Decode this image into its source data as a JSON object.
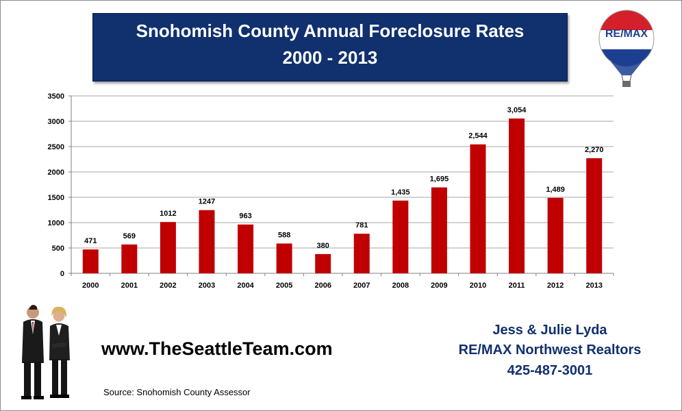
{
  "header": {
    "title_line1": "Snohomish County Annual Foreclosure Rates",
    "title_line2": "2000 - 2013"
  },
  "logo": {
    "text": "RE/MAX",
    "icon": "hot-air-balloon-icon"
  },
  "chart_data": {
    "type": "bar",
    "categories": [
      "2000",
      "2001",
      "2002",
      "2003",
      "2004",
      "2005",
      "2006",
      "2007",
      "2008",
      "2009",
      "2010",
      "2011",
      "2012",
      "2013"
    ],
    "values": [
      471,
      569,
      1012,
      1247,
      963,
      588,
      380,
      781,
      1435,
      1695,
      2544,
      3054,
      1489,
      2270
    ],
    "data_labels": [
      "471",
      "569",
      "1012",
      "1247",
      "963",
      "588",
      "380",
      "781",
      "1,435",
      "1,695",
      "2,544",
      "3,054",
      "1,489",
      "2,270"
    ],
    "ylim": [
      0,
      3500
    ],
    "yticks": [
      0,
      500,
      1000,
      1500,
      2000,
      2500,
      3000,
      3500
    ],
    "grid": true,
    "bar_color": "#c00000"
  },
  "footer": {
    "website": "www.TheSeattleTeam.com",
    "source": "Source: Snohomish County Assessor",
    "agent_names": "Jess & Julie Lyda",
    "brokerage": "RE/MAX Northwest Realtors",
    "phone": "425-487-3001"
  },
  "colors": {
    "title_bg": "#10306e",
    "contact_text": "#10306e"
  }
}
